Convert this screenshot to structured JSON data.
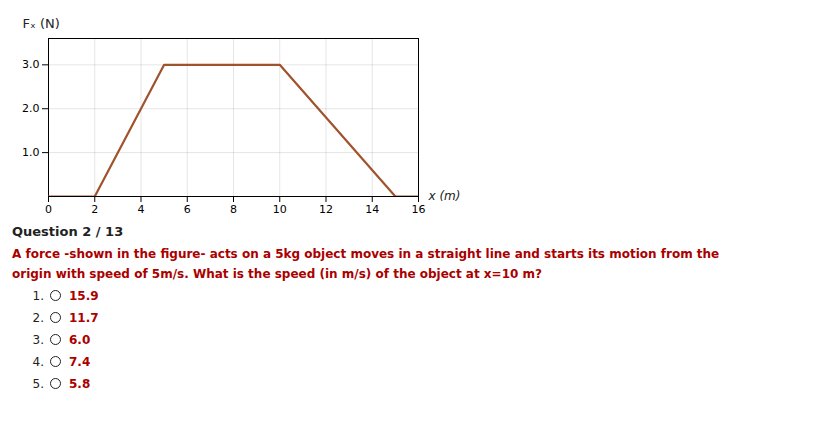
{
  "chart_data": {
    "type": "line",
    "x": [
      0,
      2,
      5,
      10,
      15,
      16
    ],
    "values": [
      0,
      0,
      3,
      3,
      0,
      0
    ],
    "color": "#a0522d",
    "xlabel": "x (m)",
    "ylabel": "Fₓ (N)",
    "xlim": [
      0,
      16
    ],
    "ylim": [
      0,
      3.6
    ],
    "xticks": [
      0,
      2,
      4,
      6,
      8,
      10,
      12,
      14,
      16
    ],
    "yticks": [
      1,
      2,
      3
    ],
    "grid": true,
    "annotations": [
      {
        "text": "Question 2 / 13",
        "color": "#222222"
      },
      {
        "text": "A force -shown in the figure- acts on a 5kg object moves in a straight line and starts its motion from the",
        "color": "#aa0000"
      },
      {
        "text": "origin with speed of 5m/s. What is the speed (in m/s) of the object at x=10 m?",
        "color": "#aa0000"
      },
      {
        "text": "1.",
        "color": "#222222"
      },
      {
        "text": "15.9",
        "color": "#aa0000"
      },
      {
        "text": "2.",
        "color": "#222222"
      },
      {
        "text": "11.7",
        "color": "#aa0000"
      },
      {
        "text": "3.",
        "color": "#222222"
      },
      {
        "text": "6.0",
        "color": "#aa0000"
      },
      {
        "text": "4.",
        "color": "#222222"
      },
      {
        "text": "7.4",
        "color": "#aa0000"
      },
      {
        "text": "5.",
        "color": "#222222"
      },
      {
        "text": "5.8",
        "color": "#aa0000"
      }
    ]
  }
}
